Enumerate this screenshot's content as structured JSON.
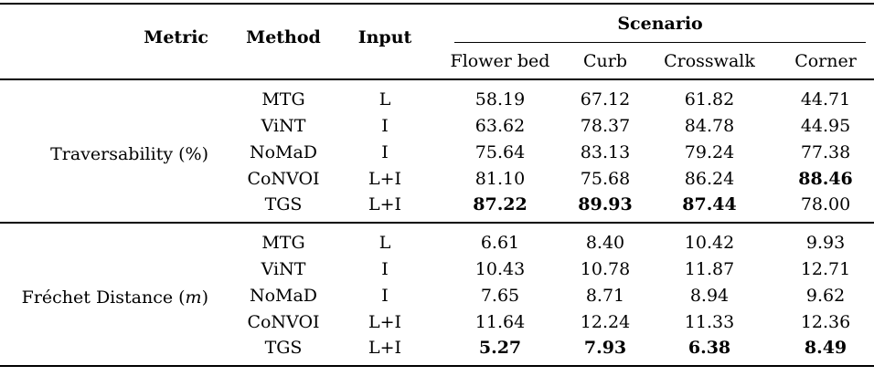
{
  "table": {
    "headers": {
      "metric": "Metric",
      "method": "Method",
      "input": "Input",
      "scenario": "Scenario"
    },
    "scenario_columns": [
      "Flower bed",
      "Curb",
      "Crosswalk",
      "Corner"
    ],
    "blocks": [
      {
        "metric_name": "Traversability",
        "metric_unit": "%",
        "unit_italic": false,
        "rows": [
          {
            "method": "MTG",
            "input": "L",
            "values": [
              "58.19",
              "67.12",
              "61.82",
              "44.71"
            ],
            "bold": [
              false,
              false,
              false,
              false
            ]
          },
          {
            "method": "ViNT",
            "input": "I",
            "values": [
              "63.62",
              "78.37",
              "84.78",
              "44.95"
            ],
            "bold": [
              false,
              false,
              false,
              false
            ]
          },
          {
            "method": "NoMaD",
            "input": "I",
            "values": [
              "75.64",
              "83.13",
              "79.24",
              "77.38"
            ],
            "bold": [
              false,
              false,
              false,
              false
            ]
          },
          {
            "method": "CoNVOI",
            "input": "L+I",
            "values": [
              "81.10",
              "75.68",
              "86.24",
              "88.46"
            ],
            "bold": [
              false,
              false,
              false,
              true
            ]
          },
          {
            "method": "TGS",
            "input": "L+I",
            "values": [
              "87.22",
              "89.93",
              "87.44",
              "78.00"
            ],
            "bold": [
              true,
              true,
              true,
              false
            ]
          }
        ]
      },
      {
        "metric_name": "Fréchet Distance",
        "metric_unit": "m",
        "unit_italic": true,
        "rows": [
          {
            "method": "MTG",
            "input": "L",
            "values": [
              "6.61",
              "8.40",
              "10.42",
              "9.93"
            ],
            "bold": [
              false,
              false,
              false,
              false
            ]
          },
          {
            "method": "ViNT",
            "input": "I",
            "values": [
              "10.43",
              "10.78",
              "11.87",
              "12.71"
            ],
            "bold": [
              false,
              false,
              false,
              false
            ]
          },
          {
            "method": "NoMaD",
            "input": "I",
            "values": [
              "7.65",
              "8.71",
              "8.94",
              "9.62"
            ],
            "bold": [
              false,
              false,
              false,
              false
            ]
          },
          {
            "method": "CoNVOI",
            "input": "L+I",
            "values": [
              "11.64",
              "12.24",
              "11.33",
              "12.36"
            ],
            "bold": [
              false,
              false,
              false,
              false
            ]
          },
          {
            "method": "TGS",
            "input": "L+I",
            "values": [
              "5.27",
              "7.93",
              "6.38",
              "8.49"
            ],
            "bold": [
              true,
              true,
              true,
              true
            ]
          }
        ]
      }
    ],
    "colors": {
      "text": "#000000",
      "background": "#ffffff",
      "rule": "#000000"
    }
  }
}
